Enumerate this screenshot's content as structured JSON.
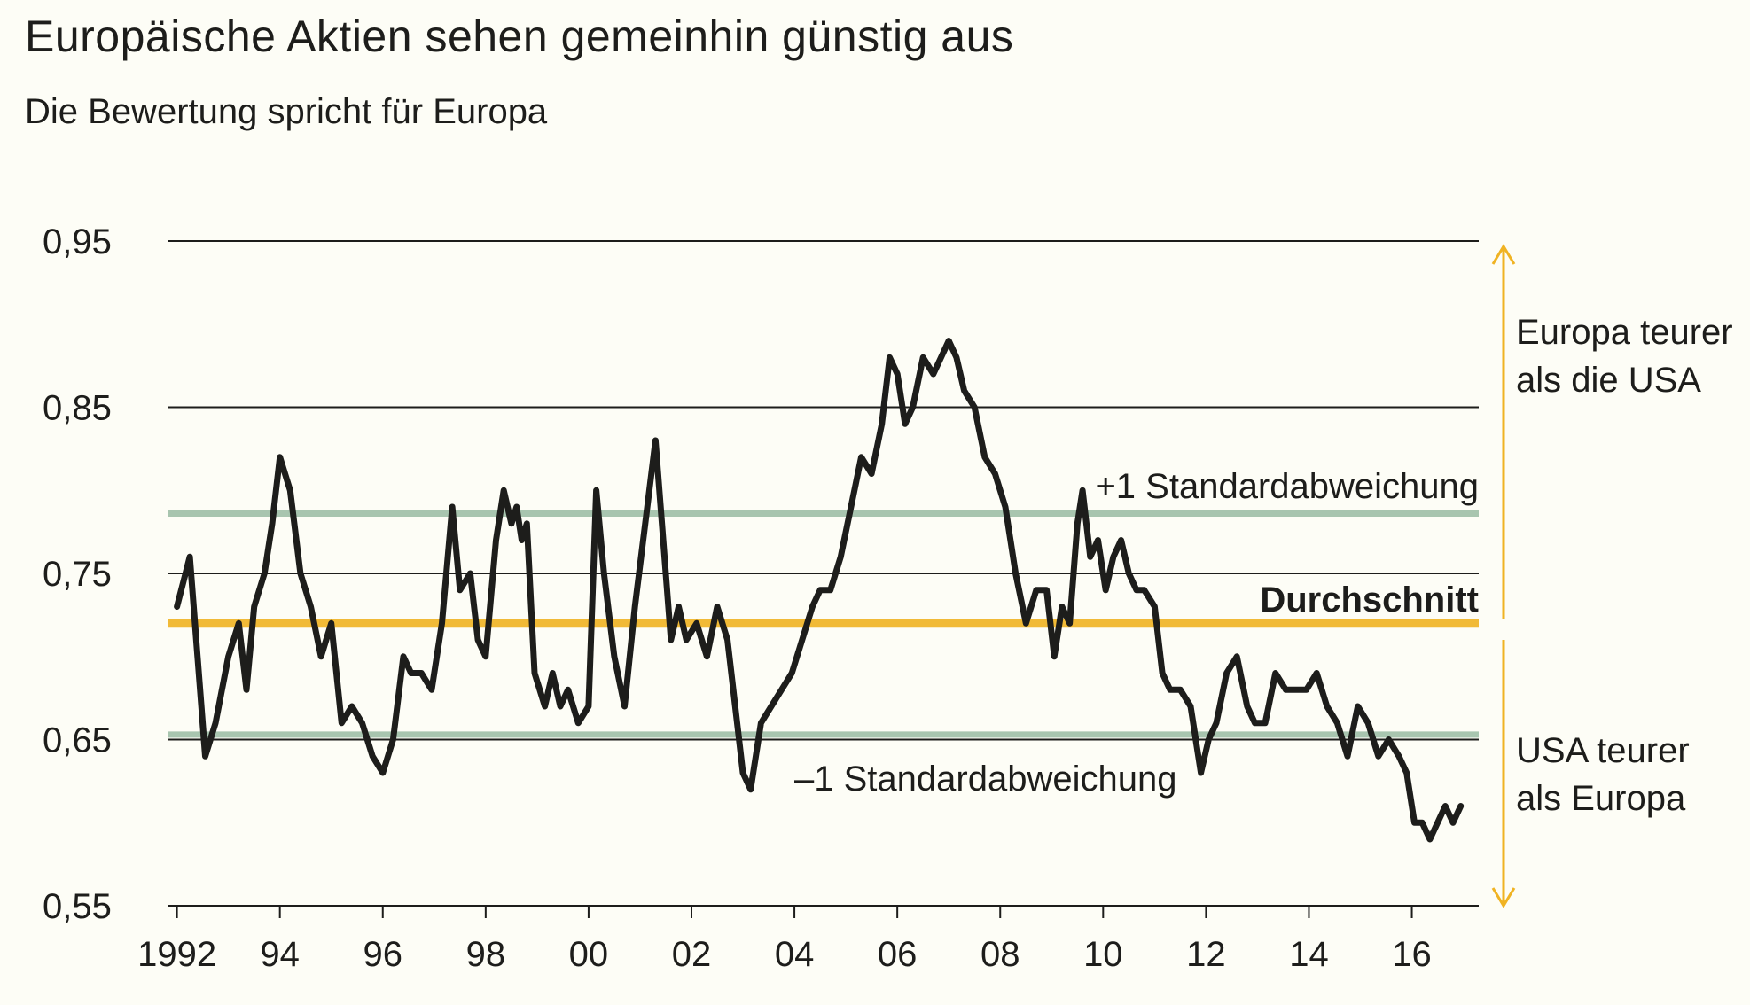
{
  "title": "Europäische Aktien sehen gemeinhin günstig aus",
  "subtitle": "Die Bewertung spricht für Europa",
  "colors": {
    "series": "#1d1d1b",
    "average": "#f0b323",
    "stddev": "#9fbfa8",
    "arrow": "#f0b323"
  },
  "annotations": {
    "plus_sd": "+1 Standardabweichung",
    "minus_sd": "–1 Standardabweichung",
    "average": "Durchschnitt",
    "europe_expensive_1": "Europa teurer",
    "europe_expensive_2": "als die USA",
    "usa_expensive_1": "USA teurer",
    "usa_expensive_2": "als Europa"
  },
  "chart_data": {
    "type": "line",
    "ylim": [
      0.55,
      0.95
    ],
    "xlim": [
      1991.8,
      2017.3
    ],
    "y_ticks": [
      0.95,
      0.85,
      0.75,
      0.65,
      0.55
    ],
    "y_tick_labels": [
      "0,95",
      "0,85",
      "0,75",
      "0,65",
      "0,55"
    ],
    "x_ticks": [
      1992,
      1994,
      1996,
      1998,
      2000,
      2002,
      2004,
      2006,
      2008,
      2010,
      2012,
      2014,
      2016
    ],
    "x_tick_labels": [
      "1992",
      "94",
      "96",
      "98",
      "00",
      "02",
      "04",
      "06",
      "08",
      "10",
      "12",
      "14",
      "16"
    ],
    "grid": "horizontal",
    "reference_lines": {
      "plus_1_sd": 0.786,
      "average": 0.72,
      "minus_1_sd": 0.653
    },
    "x": [
      1992.0,
      1992.25,
      1992.4,
      1992.55,
      1992.75,
      1993.0,
      1993.2,
      1993.35,
      1993.5,
      1993.7,
      1993.85,
      1994.0,
      1994.2,
      1994.4,
      1994.6,
      1994.8,
      1995.0,
      1995.2,
      1995.4,
      1995.6,
      1995.8,
      1996.0,
      1996.2,
      1996.4,
      1996.55,
      1996.75,
      1996.95,
      1997.15,
      1997.35,
      1997.5,
      1997.7,
      1997.85,
      1998.0,
      1998.2,
      1998.35,
      1998.5,
      1998.6,
      1998.7,
      1998.8,
      1998.95,
      1999.15,
      1999.3,
      1999.45,
      1999.6,
      1999.8,
      2000.0,
      2000.15,
      2000.3,
      2000.5,
      2000.7,
      2000.9,
      2001.1,
      2001.3,
      2001.45,
      2001.6,
      2001.75,
      2001.9,
      2002.1,
      2002.3,
      2002.5,
      2002.7,
      2002.85,
      2003.0,
      2003.15,
      2003.35,
      2003.55,
      2003.75,
      2003.95,
      2004.15,
      2004.35,
      2004.5,
      2004.7,
      2004.9,
      2005.1,
      2005.3,
      2005.5,
      2005.7,
      2005.85,
      2006.0,
      2006.15,
      2006.3,
      2006.5,
      2006.7,
      2006.85,
      2007.0,
      2007.15,
      2007.3,
      2007.5,
      2007.7,
      2007.9,
      2008.1,
      2008.3,
      2008.5,
      2008.7,
      2008.9,
      2009.05,
      2009.2,
      2009.35,
      2009.5,
      2009.6,
      2009.75,
      2009.9,
      2010.05,
      2010.2,
      2010.35,
      2010.5,
      2010.65,
      2010.8,
      2011.0,
      2011.15,
      2011.3,
      2011.5,
      2011.7,
      2011.9,
      2012.05,
      2012.2,
      2012.4,
      2012.6,
      2012.8,
      2012.95,
      2013.15,
      2013.35,
      2013.55,
      2013.75,
      2013.95,
      2014.15,
      2014.35,
      2014.55,
      2014.75,
      2014.95,
      2015.15,
      2015.35,
      2015.55,
      2015.75,
      2015.9,
      2016.05,
      2016.2,
      2016.35,
      2016.5,
      2016.65,
      2016.8,
      2016.95
    ],
    "y": [
      0.73,
      0.76,
      0.7,
      0.64,
      0.66,
      0.7,
      0.72,
      0.68,
      0.73,
      0.75,
      0.78,
      0.82,
      0.8,
      0.75,
      0.73,
      0.7,
      0.72,
      0.66,
      0.67,
      0.66,
      0.64,
      0.63,
      0.65,
      0.7,
      0.69,
      0.69,
      0.68,
      0.72,
      0.79,
      0.74,
      0.75,
      0.71,
      0.7,
      0.77,
      0.8,
      0.78,
      0.79,
      0.77,
      0.78,
      0.69,
      0.67,
      0.69,
      0.67,
      0.68,
      0.66,
      0.67,
      0.8,
      0.75,
      0.7,
      0.67,
      0.73,
      0.78,
      0.83,
      0.77,
      0.71,
      0.73,
      0.71,
      0.72,
      0.7,
      0.73,
      0.71,
      0.67,
      0.63,
      0.62,
      0.66,
      0.67,
      0.68,
      0.69,
      0.71,
      0.73,
      0.74,
      0.74,
      0.76,
      0.79,
      0.82,
      0.81,
      0.84,
      0.88,
      0.87,
      0.84,
      0.85,
      0.88,
      0.87,
      0.88,
      0.89,
      0.88,
      0.86,
      0.85,
      0.82,
      0.81,
      0.79,
      0.75,
      0.72,
      0.74,
      0.74,
      0.7,
      0.73,
      0.72,
      0.78,
      0.8,
      0.76,
      0.77,
      0.74,
      0.76,
      0.77,
      0.75,
      0.74,
      0.74,
      0.73,
      0.69,
      0.68,
      0.68,
      0.67,
      0.63,
      0.65,
      0.66,
      0.69,
      0.7,
      0.67,
      0.66,
      0.66,
      0.69,
      0.68,
      0.68,
      0.68,
      0.69,
      0.67,
      0.66,
      0.64,
      0.67,
      0.66,
      0.64,
      0.65,
      0.64,
      0.63,
      0.6,
      0.6,
      0.59,
      0.6,
      0.61,
      0.6,
      0.61
    ]
  }
}
